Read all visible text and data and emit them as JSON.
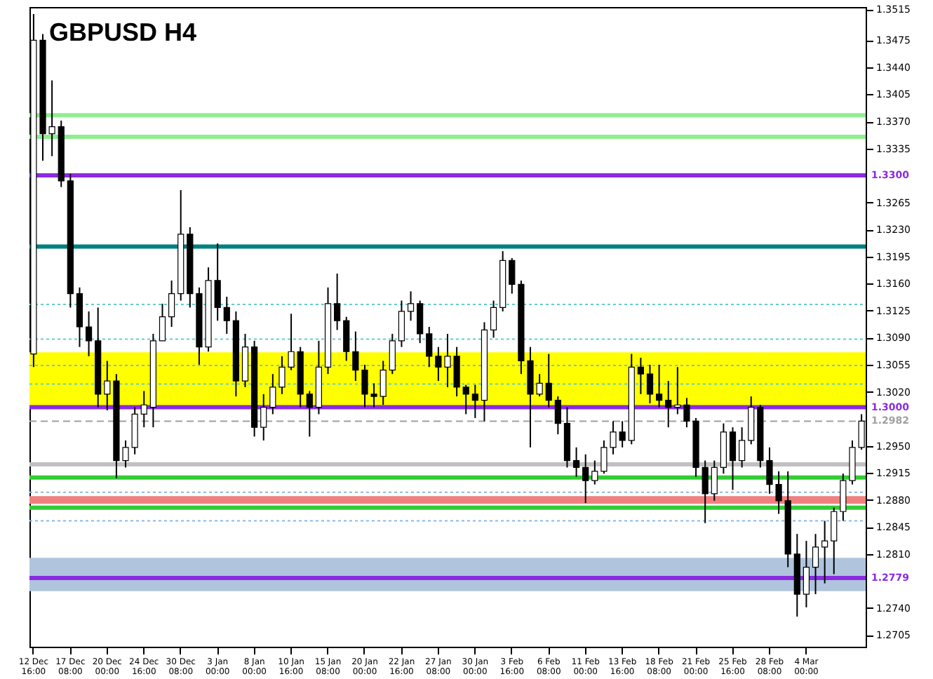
{
  "chart_data": {
    "type": "candlestick",
    "title": "GBPUSD H4",
    "categories": [
      "12 Dec 16:00",
      null,
      null,
      null,
      "17 Dec 08:00",
      null,
      null,
      null,
      "20 Dec 00:00",
      null,
      null,
      null,
      "24 Dec 16:00",
      null,
      null,
      null,
      "30 Dec 08:00",
      null,
      null,
      null,
      "3 Jan 00:00",
      null,
      null,
      null,
      "8 Jan 00:00",
      null,
      null,
      null,
      "10 Jan 16:00",
      null,
      null,
      null,
      "15 Jan 08:00",
      null,
      null,
      null,
      "20 Jan 00:00",
      null,
      null,
      null,
      "22 Jan 16:00",
      null,
      null,
      null,
      "27 Jan 08:00",
      null,
      null,
      null,
      "30 Jan 00:00",
      null,
      null,
      null,
      "3 Feb 16:00",
      null,
      null,
      null,
      "6 Feb 08:00",
      null,
      null,
      null,
      "11 Feb 00:00",
      null,
      null,
      null,
      "13 Feb 16:00",
      null,
      null,
      null,
      "18 Feb 08:00",
      null,
      null,
      null,
      "21 Feb 00:00",
      null,
      null,
      null,
      "25 Feb 16:00",
      null,
      null,
      null,
      "28 Feb 08:00",
      null,
      null,
      null,
      "4 Mar 00:00",
      null,
      null,
      null,
      null,
      null,
      null
    ],
    "series": [
      {
        "color": "#000000",
        "ohlc": [
          [
            1.3069,
            1.3509,
            1.3052,
            1.3475
          ],
          [
            1.3475,
            1.3483,
            1.3319,
            1.3354
          ],
          [
            1.3354,
            1.3423,
            1.3325,
            1.3363
          ],
          [
            1.3363,
            1.3371,
            1.3285,
            1.3293
          ],
          [
            1.3293,
            1.3302,
            1.3129,
            1.3147
          ],
          [
            1.3147,
            1.3155,
            1.3078,
            1.3104
          ],
          [
            1.3104,
            1.3124,
            1.3066,
            1.3086
          ],
          [
            1.3086,
            1.3129,
            1.3,
            1.3017
          ],
          [
            1.3017,
            1.306,
            1.2996,
            1.3034
          ],
          [
            1.3034,
            1.3043,
            1.2908,
            1.2931
          ],
          [
            1.2931,
            1.2957,
            1.2922,
            1.2948
          ],
          [
            1.2948,
            1.3,
            1.2939,
            1.2991
          ],
          [
            1.2991,
            1.3021,
            1.2974,
            1.3003
          ],
          [
            1.3,
            1.3095,
            1.2974,
            1.3086
          ],
          [
            1.3086,
            1.3134,
            1.3086,
            1.3117
          ],
          [
            1.3117,
            1.3164,
            1.3104,
            1.3147
          ],
          [
            1.3147,
            1.3281,
            1.3138,
            1.3224
          ],
          [
            1.3224,
            1.3233,
            1.3129,
            1.3147
          ],
          [
            1.3147,
            1.3155,
            1.3055,
            1.3078
          ],
          [
            1.3078,
            1.3181,
            1.3072,
            1.3164
          ],
          [
            1.3164,
            1.3212,
            1.3112,
            1.3129
          ],
          [
            1.3129,
            1.3143,
            1.3095,
            1.3112
          ],
          [
            1.3112,
            1.3124,
            1.3014,
            1.3034
          ],
          [
            1.3034,
            1.3095,
            1.3026,
            1.3078
          ],
          [
            1.3078,
            1.3086,
            1.2962,
            1.2974
          ],
          [
            1.2974,
            1.3017,
            1.2957,
            1.3
          ],
          [
            1.3,
            1.3043,
            1.2991,
            1.3026
          ],
          [
            1.3026,
            1.3066,
            1.3017,
            1.3052
          ],
          [
            1.3052,
            1.3121,
            1.3048,
            1.3072
          ],
          [
            1.3072,
            1.3078,
            1.3,
            1.3017
          ],
          [
            1.3017,
            1.3021,
            1.2962,
            1.3
          ],
          [
            1.3,
            1.3086,
            1.2991,
            1.3052
          ],
          [
            1.3052,
            1.3155,
            1.3043,
            1.3134
          ],
          [
            1.3134,
            1.3173,
            1.31,
            1.3112
          ],
          [
            1.3112,
            1.3117,
            1.306,
            1.3072
          ],
          [
            1.3072,
            1.3098,
            1.3034,
            1.3048
          ],
          [
            1.3048,
            1.3055,
            1.3,
            1.3017
          ],
          [
            1.3017,
            1.3031,
            1.3,
            1.3014
          ],
          [
            1.3014,
            1.306,
            1.3003,
            1.3048
          ],
          [
            1.3048,
            1.3095,
            1.3043,
            1.3086
          ],
          [
            1.3086,
            1.3138,
            1.3078,
            1.3124
          ],
          [
            1.3124,
            1.315,
            1.3112,
            1.3134
          ],
          [
            1.3134,
            1.3138,
            1.3083,
            1.3095
          ],
          [
            1.3095,
            1.3104,
            1.3052,
            1.3066
          ],
          [
            1.3066,
            1.3078,
            1.3034,
            1.3052
          ],
          [
            1.3052,
            1.3095,
            1.3026,
            1.3066
          ],
          [
            1.3066,
            1.3078,
            1.3014,
            1.3026
          ],
          [
            1.3026,
            1.3029,
            1.2991,
            1.3017
          ],
          [
            1.3017,
            1.3029,
            1.2986,
            1.3009
          ],
          [
            1.3009,
            1.311,
            1.2982,
            1.31
          ],
          [
            1.31,
            1.3138,
            1.309,
            1.3129
          ],
          [
            1.3129,
            1.3202,
            1.3124,
            1.319
          ],
          [
            1.319,
            1.3193,
            1.3147,
            1.3159
          ],
          [
            1.3159,
            1.3164,
            1.3043,
            1.306
          ],
          [
            1.306,
            1.3078,
            1.2948,
            1.3017
          ],
          [
            1.3017,
            1.3043,
            1.3014,
            1.3031
          ],
          [
            1.3031,
            1.3069,
            1.3,
            1.3009
          ],
          [
            1.3009,
            1.3014,
            1.2965,
            1.2979
          ],
          [
            1.2979,
            1.3,
            1.2922,
            1.2931
          ],
          [
            1.2931,
            1.2948,
            1.291,
            1.2922
          ],
          [
            1.2922,
            1.2939,
            1.2876,
            1.2905
          ],
          [
            1.2905,
            1.2931,
            1.29,
            1.2917
          ],
          [
            1.2917,
            1.2957,
            1.2914,
            1.2948
          ],
          [
            1.2948,
            1.2982,
            1.2939,
            1.2968
          ],
          [
            1.2968,
            1.2982,
            1.2948,
            1.2957
          ],
          [
            1.2957,
            1.3069,
            1.2952,
            1.3052
          ],
          [
            1.3052,
            1.3064,
            1.3017,
            1.3043
          ],
          [
            1.3043,
            1.3055,
            1.3005,
            1.3017
          ],
          [
            1.3017,
            1.3055,
            1.3,
            1.3009
          ],
          [
            1.3009,
            1.3034,
            1.2974,
            1.3
          ],
          [
            1.3,
            1.3052,
            1.2991,
            1.3003
          ],
          [
            1.3003,
            1.3012,
            1.2974,
            1.2982
          ],
          [
            1.2982,
            1.2986,
            1.291,
            1.2922
          ],
          [
            1.2922,
            1.2931,
            1.285,
            1.2888
          ],
          [
            1.2888,
            1.2931,
            1.2879,
            1.2922
          ],
          [
            1.2922,
            1.2979,
            1.2914,
            1.2968
          ],
          [
            1.2968,
            1.2974,
            1.2893,
            1.2931
          ],
          [
            1.2931,
            1.2974,
            1.2922,
            1.2957
          ],
          [
            1.2957,
            1.3014,
            1.2952,
            1.3
          ],
          [
            1.3,
            1.3003,
            1.2922,
            1.2931
          ],
          [
            1.2931,
            1.2948,
            1.2888,
            1.29
          ],
          [
            1.29,
            1.2917,
            1.2862,
            1.2879
          ],
          [
            1.2879,
            1.2917,
            1.2793,
            1.281
          ],
          [
            1.281,
            1.2836,
            1.2729,
            1.2758
          ],
          [
            1.2758,
            1.2827,
            1.2741,
            1.2793
          ],
          [
            1.2793,
            1.2836,
            1.2758,
            1.2819
          ],
          [
            1.2819,
            1.2853,
            1.2772,
            1.2827
          ],
          [
            1.2827,
            1.287,
            1.2784,
            1.2865
          ],
          [
            1.2865,
            1.2914,
            1.2853,
            1.2905
          ],
          [
            1.2905,
            1.2957,
            1.29,
            1.2948
          ],
          [
            1.2948,
            1.2991,
            1.2945,
            1.2982
          ]
        ]
      }
    ],
    "ylim": [
      1.269,
      1.3518
    ],
    "yticks": [
      1.3515,
      1.3475,
      {
        "value": 1.344,
        "label": "1.3440"
      },
      1.3405,
      {
        "value": 1.337,
        "label": "1.3370"
      },
      1.3335,
      1.3265,
      {
        "value": 1.323,
        "label": "1.3230"
      },
      1.3195,
      {
        "value": 1.316,
        "label": "1.3160"
      },
      1.3125,
      {
        "value": 1.309,
        "label": "1.3090"
      },
      1.3055,
      {
        "value": 1.302,
        "label": "1.3020"
      },
      {
        "value": 1.295,
        "label": "1.2950"
      },
      1.2915,
      {
        "value": 1.288,
        "label": "1.2880"
      },
      1.2845,
      {
        "value": 1.281,
        "label": "1.2810"
      },
      {
        "value": 1.274,
        "label": "1.2740"
      },
      1.2705
    ],
    "ref_lines": [
      {
        "axis": "y",
        "value": 1.3378,
        "color": "#90ee90",
        "line_style": "solid"
      },
      {
        "axis": "y",
        "value": 1.335,
        "color": "#90ee90",
        "line_style": "solid"
      },
      {
        "axis": "y",
        "value": 1.33,
        "label": "1.3300",
        "color": "#8a2be2",
        "line_style": "solid"
      },
      {
        "axis": "y",
        "value": 1.3208,
        "color": "#008080",
        "line_style": "solid"
      },
      {
        "axis": "y",
        "value": 1.3133,
        "color": "#66cccc",
        "line_style": "dotted"
      },
      {
        "axis": "y",
        "value": 1.3088,
        "color": "#66cccc",
        "line_style": "dotted"
      },
      {
        "axis": "y",
        "value": 1.3054,
        "color": "#87b7e8",
        "line_style": "dotted"
      },
      {
        "axis": "y",
        "value": 1.303,
        "color": "#66cccc",
        "line_style": "dotted"
      },
      {
        "axis": "y",
        "value": 1.3,
        "label": "1.3000",
        "color": "#8a2be2",
        "line_style": "solid"
      },
      {
        "axis": "y",
        "value": 1.2982,
        "label": "1.2982",
        "color": "#a0a0a0",
        "line_style": "dashed"
      },
      {
        "axis": "y",
        "value": 1.2926,
        "color": "#c0c0c0",
        "line_style": "solid"
      },
      {
        "axis": "y",
        "value": 1.2909,
        "color": "#32cd32",
        "line_style": "solid"
      },
      {
        "axis": "y",
        "value": 1.289,
        "color": "#87b7e8",
        "line_style": "dotted"
      },
      {
        "axis": "y",
        "value": 1.287,
        "color": "#32cd32",
        "line_style": "solid"
      },
      {
        "axis": "y",
        "value": 1.2853,
        "color": "#87b7e8",
        "line_style": "dotted"
      },
      {
        "axis": "y",
        "value": 1.2779,
        "label": "1.2779",
        "color": "#8a2be2",
        "line_style": "solid"
      }
    ],
    "bands": [
      {
        "axis": "y",
        "from": 1.3,
        "to": 1.3071,
        "color": "#ffff00"
      },
      {
        "axis": "y",
        "from": 1.2875,
        "to": 1.2885,
        "color": "#f08080"
      },
      {
        "axis": "y",
        "from": 1.2762,
        "to": 1.2805,
        "color": "#b0c4de"
      }
    ]
  }
}
